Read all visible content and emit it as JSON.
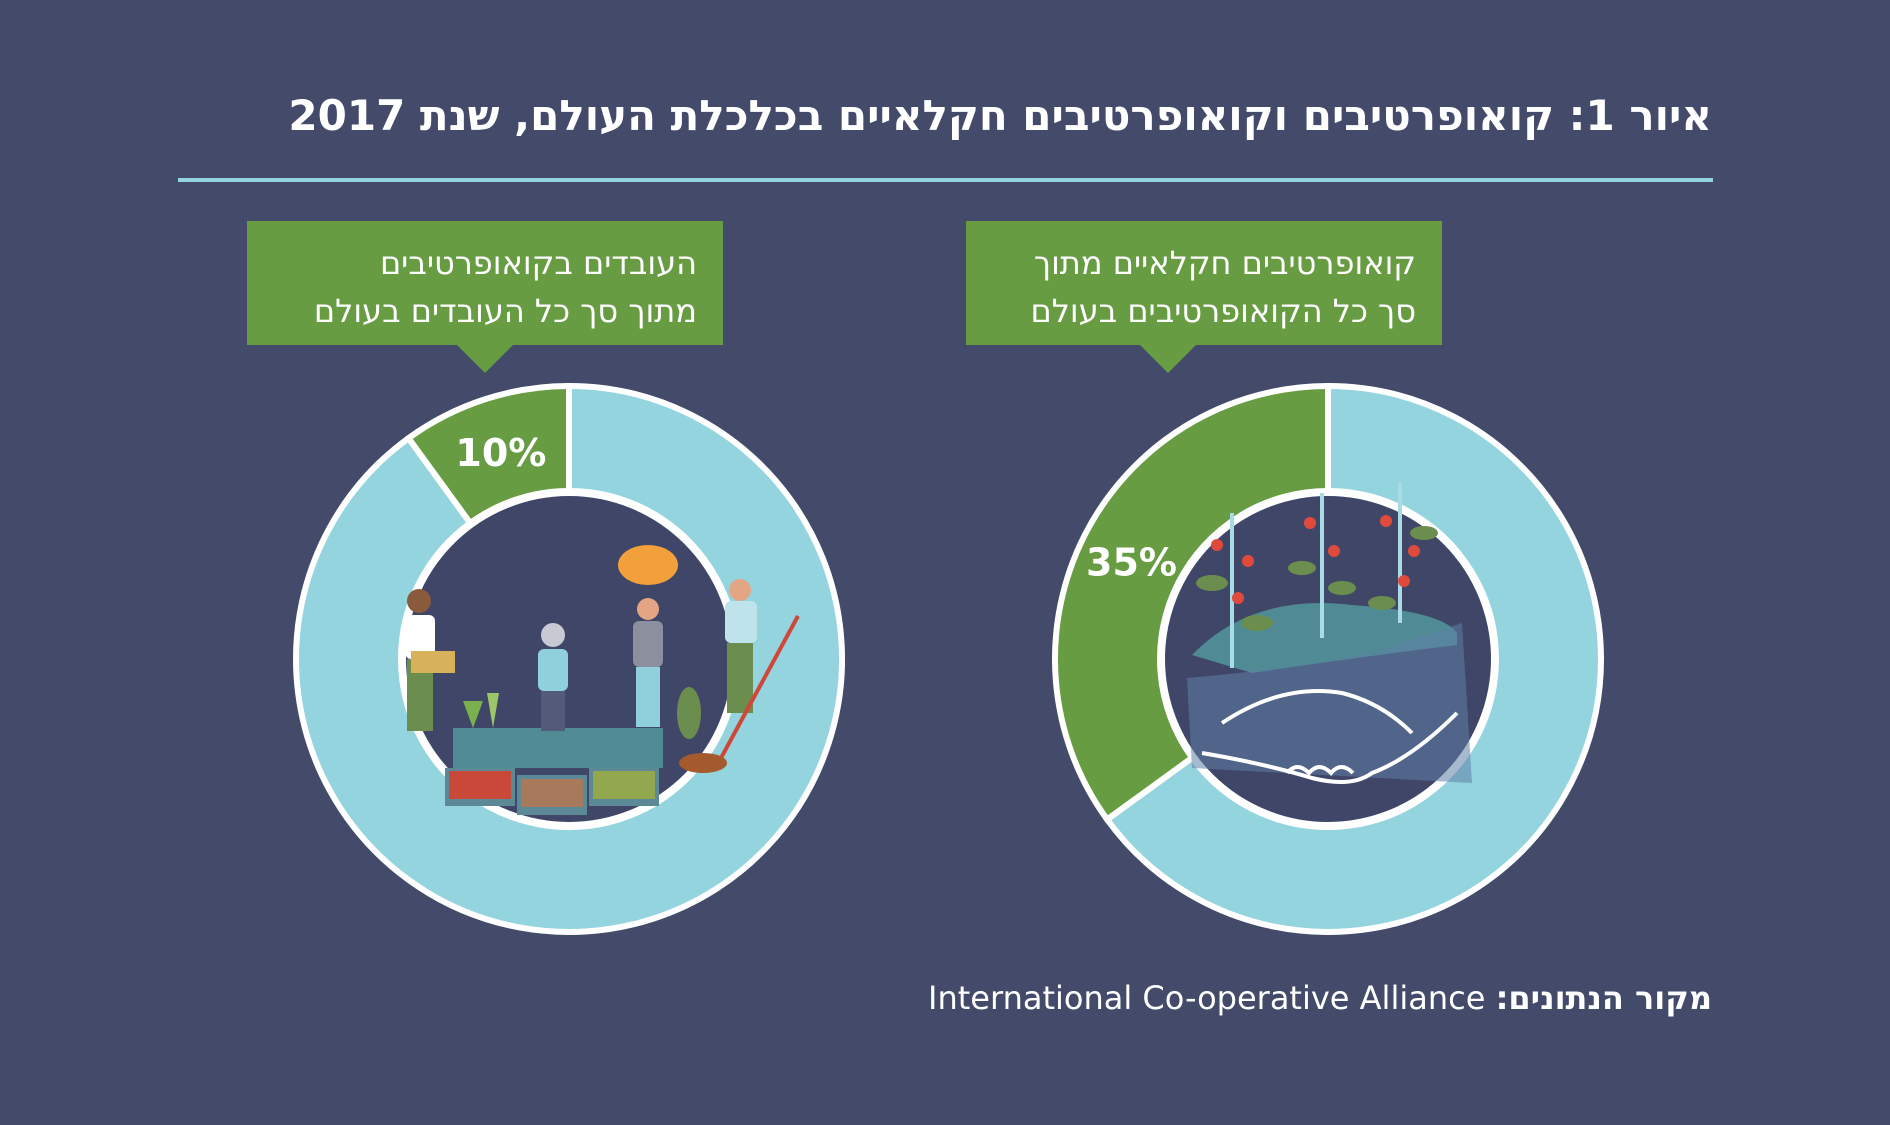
{
  "title": "איור 1: קואופרטיבים וקואופרטיבים חקלאיים בכלכלת העולם, שנת 2017",
  "source": {
    "label": "מקור הנתונים:",
    "name": "International Co-operative Alliance"
  },
  "colors": {
    "background": "#434a6a",
    "highlight": "#679c42",
    "remainder": "#93d4df",
    "ring_stroke": "#ffffff",
    "inner_disc": "#3f4667"
  },
  "chart_data": [
    {
      "type": "pie",
      "variant": "donut",
      "position": "left",
      "callout_lines": [
        "העובדים בקואופרטיבים",
        "מתוך סך כל העובדים בעולם"
      ],
      "value": 10,
      "value_label": "10%",
      "illustration": "farmers-market-icon"
    },
    {
      "type": "pie",
      "variant": "donut",
      "position": "right",
      "callout_lines": [
        "קואופרטיבים חקלאיים מתוך",
        "סך כל הקואופרטיבים בעולם"
      ],
      "value": 35,
      "value_label": "35%",
      "illustration": "handshake-plants-icon"
    }
  ]
}
